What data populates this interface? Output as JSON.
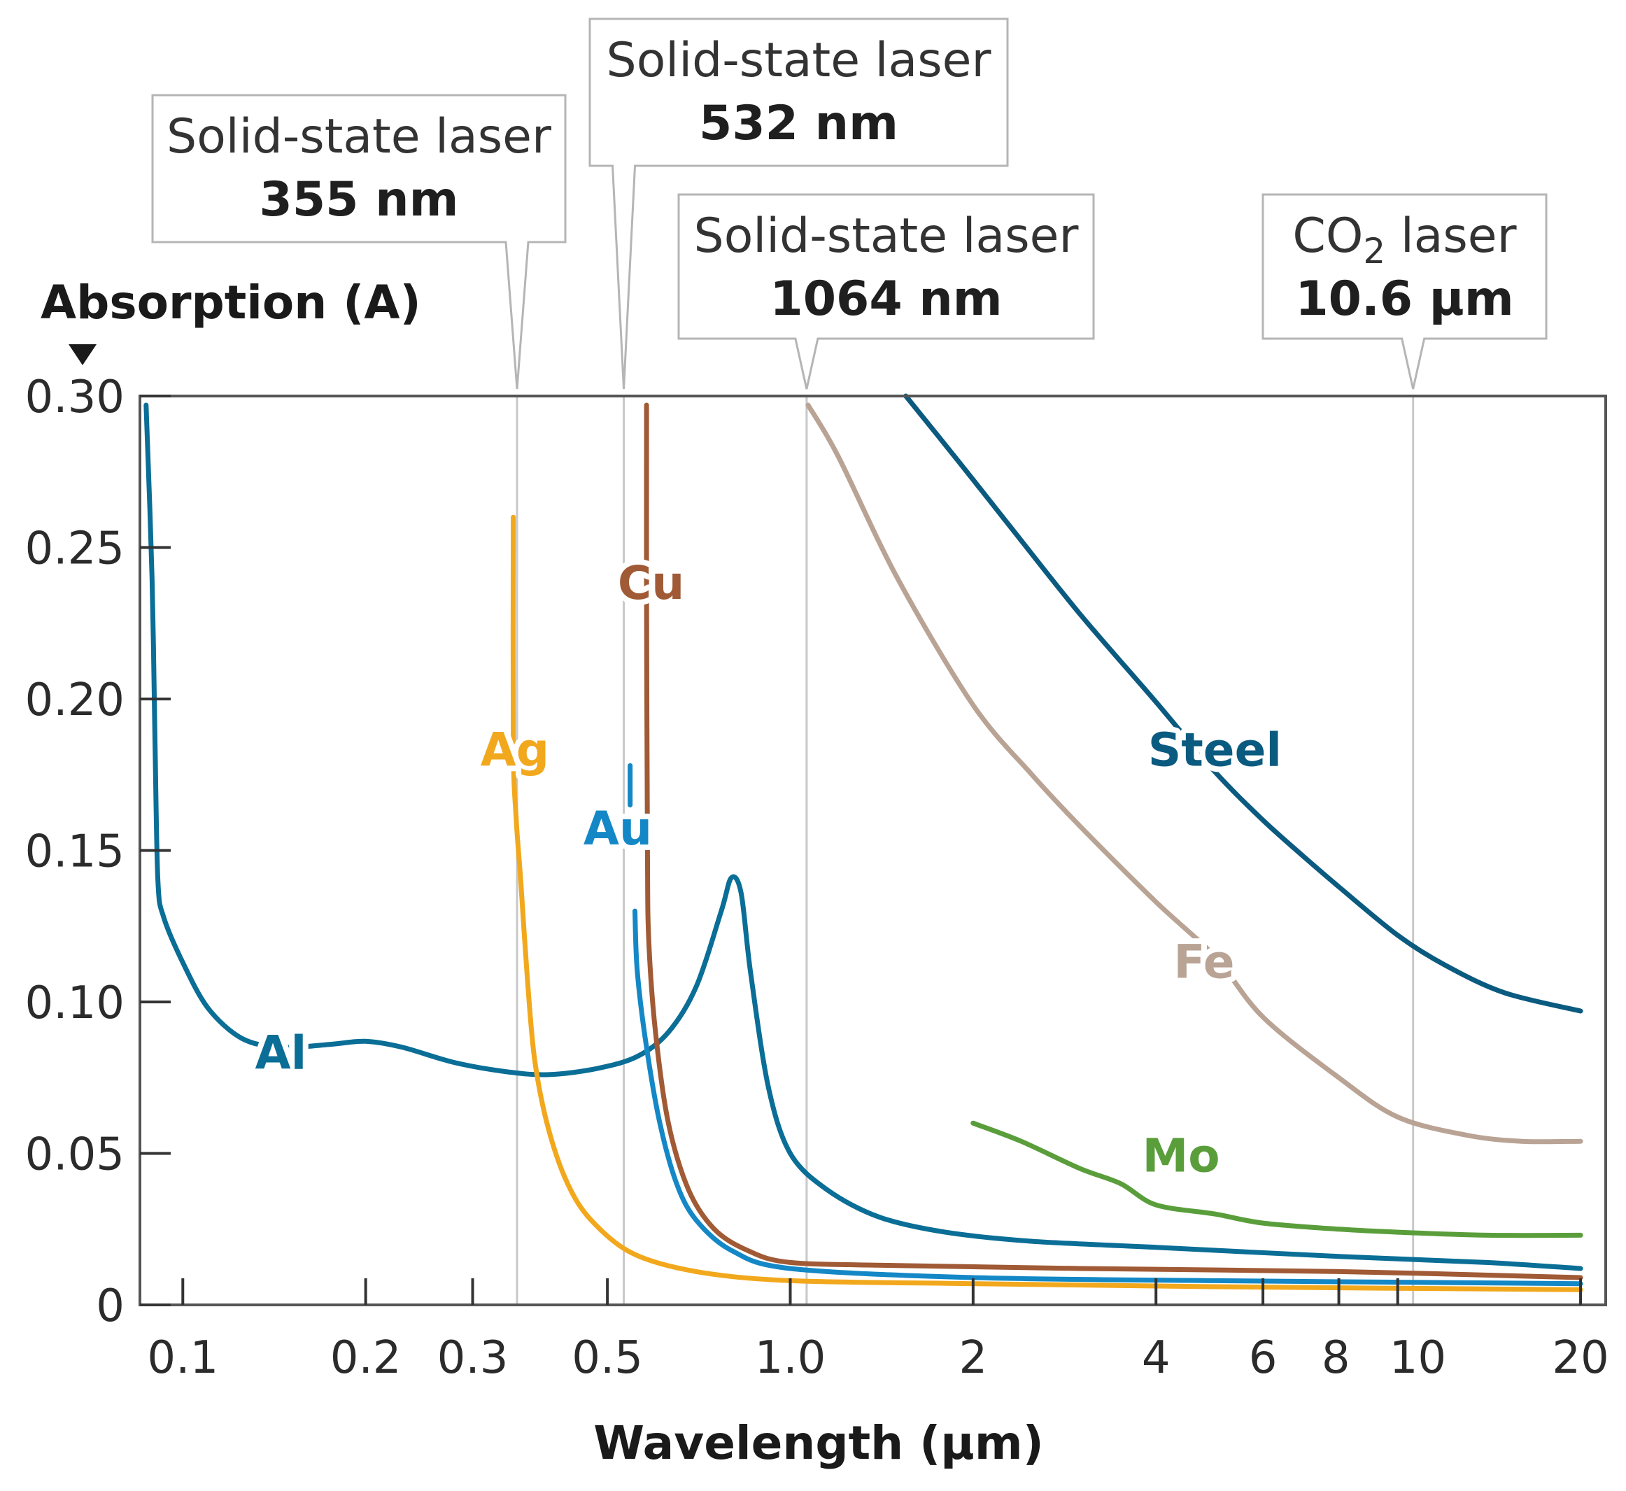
{
  "chart_data": {
    "type": "line",
    "title": "",
    "xlabel": "Wavelength (µm)",
    "ylabel": "Absorption (A)",
    "x_scale": "log",
    "xlim": [
      0.085,
      22
    ],
    "ylim": [
      0,
      0.3
    ],
    "grid": false,
    "x_ticks": [
      {
        "value": 0.1,
        "label": "0.1"
      },
      {
        "value": 0.2,
        "label": "0.2"
      },
      {
        "value": 0.3,
        "label": "0.3"
      },
      {
        "value": 0.5,
        "label": "0.5"
      },
      {
        "value": 1.0,
        "label": "1.0"
      },
      {
        "value": 2,
        "label": "2"
      },
      {
        "value": 4,
        "label": "4"
      },
      {
        "value": 6,
        "label": "6"
      },
      {
        "value": 8,
        "label": "8"
      },
      {
        "value": 10,
        "label": "10"
      },
      {
        "value": 20,
        "label": "20"
      }
    ],
    "y_ticks": [
      {
        "value": 0,
        "label": "0"
      },
      {
        "value": 0.05,
        "label": "0.05"
      },
      {
        "value": 0.1,
        "label": "0.10"
      },
      {
        "value": 0.15,
        "label": "0.15"
      },
      {
        "value": 0.2,
        "label": "0.20"
      },
      {
        "value": 0.25,
        "label": "0.25"
      },
      {
        "value": 0.3,
        "label": "0.30"
      }
    ],
    "laser_lines": [
      {
        "wavelength": 0.355,
        "line1": "Solid-state laser",
        "line2": "355 nm"
      },
      {
        "wavelength": 0.532,
        "line1": "Solid-state laser",
        "line2": "532 nm"
      },
      {
        "wavelength": 1.064,
        "line1": "Solid-state laser",
        "line2": "1064 nm"
      },
      {
        "wavelength": 10.6,
        "line1": "CO",
        "line1_sub": "2",
        "line1_rest": " laser",
        "line2": "10.6 µm"
      }
    ],
    "series": [
      {
        "name": "Al",
        "color": "#0a6e96",
        "label_at": [
          0.145,
          0.078
        ],
        "points": [
          [
            0.087,
            0.297
          ],
          [
            0.089,
            0.24
          ],
          [
            0.09,
            0.185
          ],
          [
            0.091,
            0.14
          ],
          [
            0.093,
            0.128
          ],
          [
            0.1,
            0.113
          ],
          [
            0.11,
            0.098
          ],
          [
            0.125,
            0.088
          ],
          [
            0.145,
            0.085
          ],
          [
            0.175,
            0.086
          ],
          [
            0.2,
            0.087
          ],
          [
            0.23,
            0.085
          ],
          [
            0.28,
            0.08
          ],
          [
            0.34,
            0.077
          ],
          [
            0.4,
            0.076
          ],
          [
            0.48,
            0.078
          ],
          [
            0.56,
            0.082
          ],
          [
            0.63,
            0.09
          ],
          [
            0.7,
            0.105
          ],
          [
            0.77,
            0.13
          ],
          [
            0.8,
            0.141
          ],
          [
            0.83,
            0.136
          ],
          [
            0.86,
            0.11
          ],
          [
            0.92,
            0.072
          ],
          [
            1.0,
            0.05
          ],
          [
            1.15,
            0.038
          ],
          [
            1.4,
            0.029
          ],
          [
            1.8,
            0.024
          ],
          [
            2.5,
            0.021
          ],
          [
            4,
            0.019
          ],
          [
            8,
            0.016
          ],
          [
            14,
            0.014
          ],
          [
            20,
            0.012
          ]
        ]
      },
      {
        "name": "Ag",
        "color": "#f2a81d",
        "label_at": [
          0.352,
          0.178
        ],
        "points": [
          [
            0.35,
            0.26
          ],
          [
            0.35,
            0.185
          ],
          [
            0.354,
            0.16
          ],
          [
            0.36,
            0.14
          ],
          [
            0.37,
            0.105
          ],
          [
            0.38,
            0.08
          ],
          [
            0.4,
            0.058
          ],
          [
            0.43,
            0.04
          ],
          [
            0.47,
            0.028
          ],
          [
            0.55,
            0.017
          ],
          [
            0.7,
            0.011
          ],
          [
            1.0,
            0.008
          ],
          [
            2,
            0.007
          ],
          [
            5,
            0.006
          ],
          [
            20,
            0.005
          ]
        ]
      },
      {
        "name": "Cu",
        "color": "#a05a35",
        "label_at": [
          0.59,
          0.233
        ],
        "points": [
          [
            0.58,
            0.297
          ],
          [
            0.58,
            0.235
          ],
          [
            0.582,
            0.15
          ],
          [
            0.585,
            0.12
          ],
          [
            0.6,
            0.09
          ],
          [
            0.63,
            0.06
          ],
          [
            0.68,
            0.038
          ],
          [
            0.75,
            0.025
          ],
          [
            0.85,
            0.018
          ],
          [
            1.0,
            0.014
          ],
          [
            1.5,
            0.013
          ],
          [
            3,
            0.012
          ],
          [
            8,
            0.011
          ],
          [
            20,
            0.009
          ]
        ]
      },
      {
        "name": "Au",
        "color": "#1488c6",
        "label_at": [
          0.52,
          0.152
        ],
        "points": [
          [
            0.555,
            0.13
          ],
          [
            0.56,
            0.11
          ],
          [
            0.58,
            0.085
          ],
          [
            0.61,
            0.06
          ],
          [
            0.65,
            0.04
          ],
          [
            0.7,
            0.028
          ],
          [
            0.8,
            0.018
          ],
          [
            1.0,
            0.012
          ],
          [
            2,
            0.009
          ],
          [
            5,
            0.008
          ],
          [
            20,
            0.007
          ]
        ]
      },
      {
        "name": "Fe",
        "color": "#b9a394",
        "label_at": [
          4.8,
          0.108
        ],
        "points": [
          [
            1.07,
            0.297
          ],
          [
            1.2,
            0.28
          ],
          [
            1.5,
            0.24
          ],
          [
            2,
            0.198
          ],
          [
            2.5,
            0.175
          ],
          [
            3,
            0.158
          ],
          [
            4,
            0.133
          ],
          [
            5,
            0.115
          ],
          [
            6,
            0.095
          ],
          [
            8,
            0.075
          ],
          [
            10,
            0.062
          ],
          [
            13,
            0.056
          ],
          [
            16,
            0.054
          ],
          [
            20,
            0.054
          ]
        ]
      },
      {
        "name": "Steel",
        "color": "#0b5a80",
        "label_at": [
          5.0,
          0.178
        ],
        "points": [
          [
            1.55,
            0.3
          ],
          [
            1.9,
            0.278
          ],
          [
            2.3,
            0.257
          ],
          [
            3,
            0.228
          ],
          [
            4,
            0.199
          ],
          [
            5,
            0.176
          ],
          [
            6,
            0.16
          ],
          [
            7,
            0.148
          ],
          [
            8,
            0.138
          ],
          [
            10,
            0.122
          ],
          [
            12,
            0.112
          ],
          [
            15,
            0.103
          ],
          [
            20,
            0.097
          ]
        ]
      },
      {
        "name": "Mo",
        "color": "#5a9e3b",
        "label_at": [
          4.4,
          0.044
        ],
        "points": [
          [
            2.0,
            0.06
          ],
          [
            2.4,
            0.054
          ],
          [
            3,
            0.045
          ],
          [
            3.5,
            0.04
          ],
          [
            4,
            0.033
          ],
          [
            5,
            0.03
          ],
          [
            6,
            0.027
          ],
          [
            8,
            0.025
          ],
          [
            10,
            0.024
          ],
          [
            14,
            0.023
          ],
          [
            20,
            0.023
          ]
        ]
      }
    ]
  }
}
